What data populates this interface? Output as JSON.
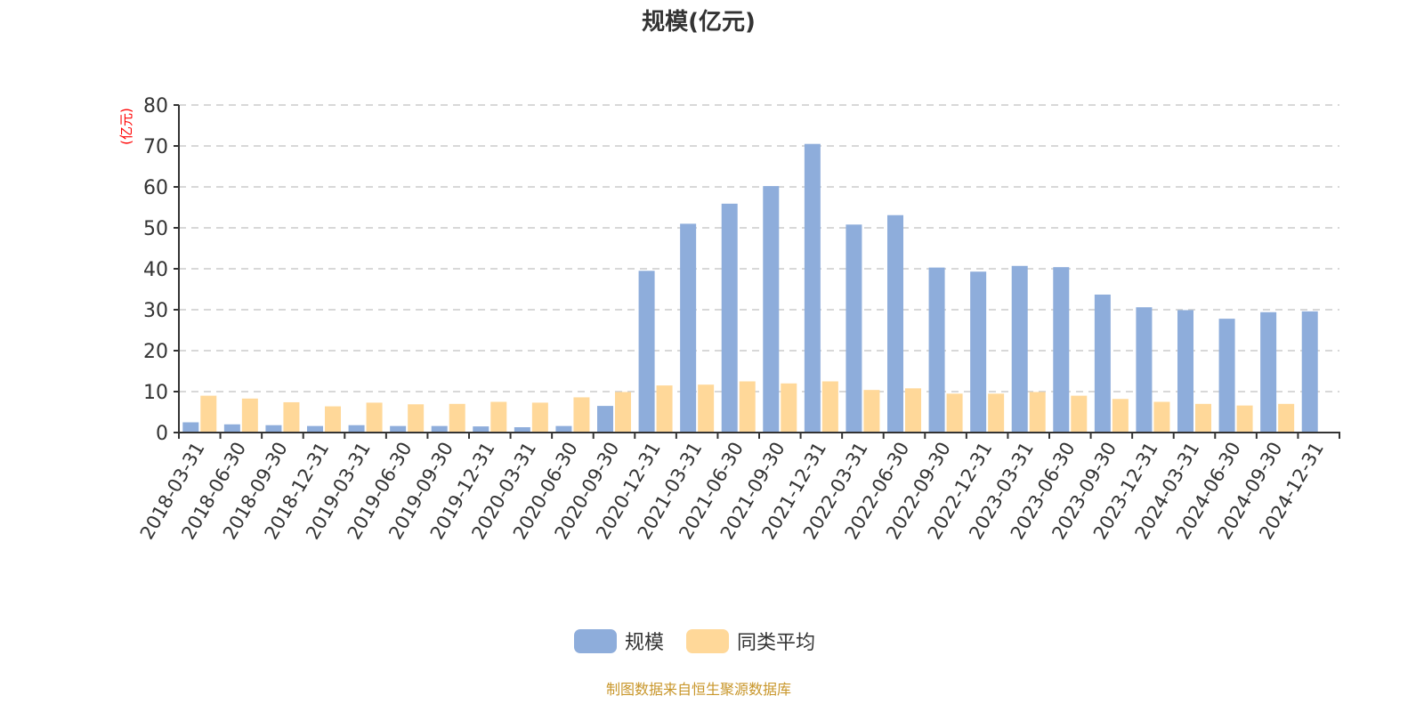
{
  "chart_data": {
    "type": "bar",
    "title": "规模(亿元)",
    "ylabel": "(亿元)",
    "xlabel": "",
    "ylim": [
      0,
      80
    ],
    "yticks": [
      0,
      10,
      20,
      30,
      40,
      50,
      60,
      70,
      80
    ],
    "grid": true,
    "legend_position": "bottom",
    "categories": [
      "2018-03-31",
      "2018-06-30",
      "2018-09-30",
      "2018-12-31",
      "2019-03-31",
      "2019-06-30",
      "2019-09-30",
      "2019-12-31",
      "2020-03-31",
      "2020-06-30",
      "2020-09-30",
      "2020-12-31",
      "2021-03-31",
      "2021-06-30",
      "2021-09-30",
      "2021-12-31",
      "2022-03-31",
      "2022-06-30",
      "2022-09-30",
      "2022-12-31",
      "2023-03-31",
      "2023-06-30",
      "2023-09-30",
      "2023-12-31",
      "2024-03-31",
      "2024-06-30",
      "2024-09-30",
      "2024-12-31"
    ],
    "series": [
      {
        "name": "规模",
        "color": "#8eaddb",
        "values": [
          2.5,
          2.0,
          1.8,
          1.6,
          1.8,
          1.6,
          1.6,
          1.5,
          1.3,
          1.6,
          6.5,
          39.5,
          51.0,
          55.9,
          60.2,
          70.5,
          50.8,
          53.1,
          40.3,
          39.3,
          40.7,
          40.4,
          33.7,
          30.6,
          29.9,
          27.8,
          29.4,
          29.6
        ]
      },
      {
        "name": "同类平均",
        "color": "#ffd899",
        "values": [
          9.0,
          8.3,
          7.4,
          6.4,
          7.3,
          6.9,
          7.0,
          7.5,
          7.3,
          8.6,
          9.9,
          11.5,
          11.7,
          12.5,
          12.0,
          12.5,
          10.4,
          10.8,
          9.5,
          9.5,
          9.9,
          9.0,
          8.2,
          7.5,
          7.0,
          6.6,
          7.0,
          null
        ]
      }
    ]
  },
  "footer": "制图数据来自恒生聚源数据库",
  "colors": {
    "axis": "#333333",
    "grid": "#cccccc",
    "ylabel": "#ff0000",
    "footer": "#c8962a"
  }
}
